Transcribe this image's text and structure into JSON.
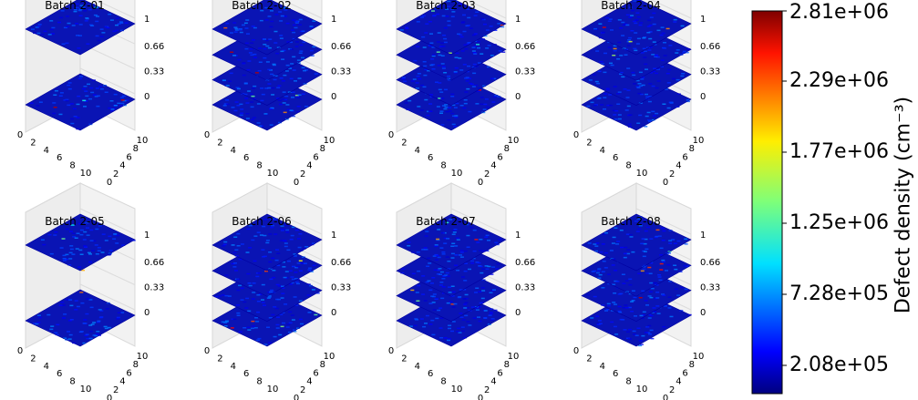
{
  "chart_data": {
    "type": "heatmap",
    "subtype": "3d-stacked-layer-surfaces",
    "panels": [
      {
        "title": "Batch 2-01",
        "z_layers": [
          0,
          1
        ]
      },
      {
        "title": "Batch 2-02",
        "z_layers": [
          0,
          0.33,
          0.66,
          1
        ]
      },
      {
        "title": "Batch 2-03",
        "z_layers": [
          0,
          0.33,
          0.66,
          1
        ]
      },
      {
        "title": "Batch 2-04",
        "z_layers": [
          0,
          0.33,
          0.66,
          1
        ]
      },
      {
        "title": "Batch 2-05",
        "z_layers": [
          0,
          1
        ]
      },
      {
        "title": "Batch 2-06",
        "z_layers": [
          0,
          0.33,
          0.66,
          1
        ]
      },
      {
        "title": "Batch 2-07",
        "z_layers": [
          0,
          0.33,
          0.66,
          1
        ]
      },
      {
        "title": "Batch 2-08",
        "z_layers": [
          0,
          0.33,
          0.66,
          1
        ]
      }
    ],
    "x_ticks": [
      "0",
      "2",
      "4",
      "6",
      "8",
      "10"
    ],
    "y_ticks": [
      "0",
      "2",
      "4",
      "6",
      "8",
      "10"
    ],
    "z_ticks": [
      "0",
      "0.33",
      "0.66",
      "1"
    ],
    "xlim": [
      0,
      10
    ],
    "ylim": [
      0,
      10
    ],
    "zlim": [
      0,
      1
    ],
    "colorbar": {
      "label": "Defect density (cm⁻³)",
      "range": [
        208000.0,
        2810000.0
      ],
      "ticks": [
        "2.08e+05",
        "7.28e+05",
        "1.25e+06",
        "1.77e+06",
        "2.29e+06",
        "2.81e+06"
      ],
      "tick_values": [
        208000,
        728000,
        1250000,
        1770000,
        2290000,
        2810000
      ],
      "colormap": "jet"
    },
    "grid": true
  }
}
